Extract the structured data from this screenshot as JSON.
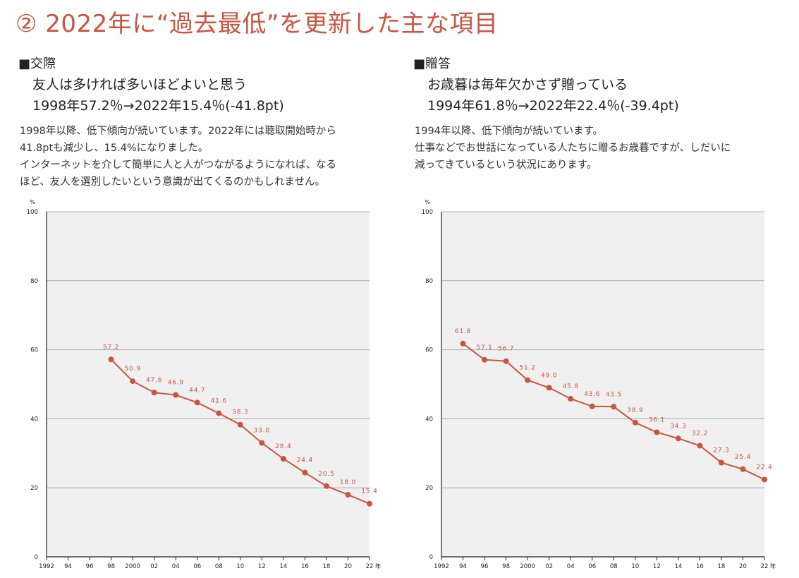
{
  "title": "② 2022年に“過去最低”を更新した主な項目",
  "colors": {
    "accent": "#c9553f",
    "plot_bg": "#f0f0f0",
    "grid": "#aaaaaa"
  },
  "panels": [
    {
      "heading": "■交際",
      "subheading1": "友人は多ければ多いほどよいと思う",
      "subheading2": "1998年57.2％→2022年15.4％(-41.8pt)",
      "description": [
        "1998年以降、低下傾向が続いています。2022年には聴取開始時から",
        "41.8ptも減少し、15.4%になりました。",
        "インターネットを介して簡単に人と人がつながるようになれば、なる",
        "ほど、友人を選別したいという意識が出てくるのかもしれません。"
      ]
    },
    {
      "heading": "■贈答",
      "subheading1": "お歳暮は毎年欠かさず贈っている",
      "subheading2": "1994年61.8％→2022年22.4％(-39.4pt)",
      "description": [
        "1994年以降、低下傾向が続いています。",
        "仕事などでお世話になっている人たちに贈るお歳暮ですが、しだいに",
        "減ってきているという状況にあります。"
      ]
    }
  ],
  "chart_data": [
    {
      "type": "line",
      "title": "",
      "ylabel": "%",
      "xlabel": "年",
      "ylim": [
        0,
        100
      ],
      "yticks": [
        0,
        20,
        40,
        60,
        80,
        100
      ],
      "xlim": [
        1992,
        2022
      ],
      "xtick_labels": [
        "1992",
        "94",
        "96",
        "98",
        "2000",
        "02",
        "04",
        "06",
        "08",
        "10",
        "12",
        "14",
        "16",
        "18",
        "20",
        "22"
      ],
      "x_unit_label": "年",
      "grid": true,
      "x": [
        1998,
        2000,
        2002,
        2004,
        2006,
        2008,
        2010,
        2012,
        2014,
        2016,
        2018,
        2020,
        2022
      ],
      "values": [
        57.2,
        50.9,
        47.6,
        46.9,
        44.7,
        41.6,
        38.3,
        33.0,
        28.4,
        24.4,
        20.5,
        18.0,
        15.4
      ],
      "data_labels": [
        "57.2",
        "50.9",
        "47.6",
        "46.9",
        "44.7",
        "41.6",
        "38.3",
        "33.0",
        "28.4",
        "24.4",
        "20.5",
        "18.0",
        "15.4"
      ]
    },
    {
      "type": "line",
      "title": "",
      "ylabel": "%",
      "xlabel": "年",
      "ylim": [
        0,
        100
      ],
      "yticks": [
        0,
        20,
        40,
        60,
        80,
        100
      ],
      "xlim": [
        1992,
        2022
      ],
      "xtick_labels": [
        "1992",
        "94",
        "96",
        "98",
        "2000",
        "02",
        "04",
        "06",
        "08",
        "10",
        "12",
        "14",
        "16",
        "18",
        "20",
        "22"
      ],
      "x_unit_label": "年",
      "grid": true,
      "x": [
        1994,
        1996,
        1998,
        2000,
        2002,
        2004,
        2006,
        2008,
        2010,
        2012,
        2014,
        2016,
        2018,
        2020,
        2022
      ],
      "values": [
        61.8,
        57.1,
        56.7,
        51.2,
        49.0,
        45.8,
        43.6,
        43.5,
        38.9,
        36.1,
        34.3,
        32.2,
        27.3,
        25.4,
        22.4
      ],
      "data_labels": [
        "61.8",
        "57.1",
        "56.7",
        "51.2",
        "49.0",
        "45.8",
        "43.6",
        "43.5",
        "38.9",
        "36.1",
        "34.3",
        "32.2",
        "27.3",
        "25.4",
        "22.4"
      ]
    }
  ]
}
